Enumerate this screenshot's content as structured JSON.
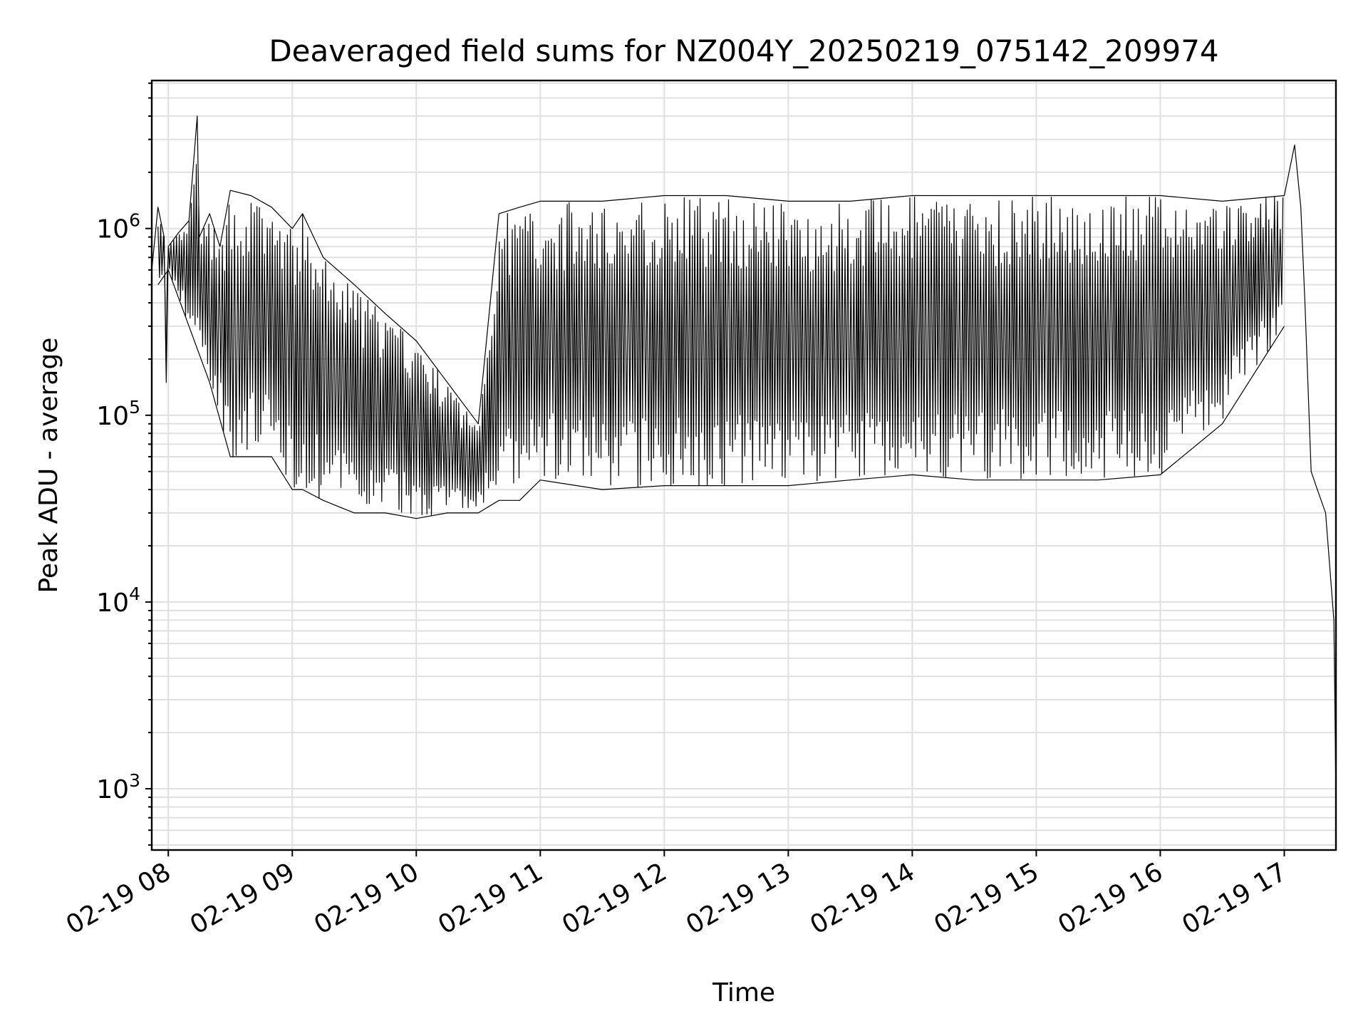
{
  "chart_data": {
    "type": "line",
    "title": "Deaveraged field sums for NZ004Y_20250219_075142_209974",
    "xlabel": "Time",
    "ylabel": "Peak ADU - average",
    "y_scale": "log",
    "ylim": [
      470,
      6200000
    ],
    "xlim": [
      "2025-02-19 07:52",
      "2025-02-19 17:25"
    ],
    "grid": true,
    "x_ticks": [
      "02-19 08",
      "02-19 09",
      "02-19 10",
      "02-19 11",
      "02-19 12",
      "02-19 13",
      "02-19 14",
      "02-19 15",
      "02-19 16",
      "02-19 17"
    ],
    "y_ticks": [
      {
        "value": 1000,
        "base": "10",
        "exp": "3"
      },
      {
        "value": 10000,
        "base": "10",
        "exp": "4"
      },
      {
        "value": 100000,
        "base": "10",
        "exp": "5"
      },
      {
        "value": 1000000,
        "base": "10",
        "exp": "6"
      }
    ],
    "line_color": "#000000",
    "series": [
      {
        "x": [
          "2025-02-19 07:52",
          "2025-02-19 07:55",
          "2025-02-19 07:58",
          "2025-02-19 07:59",
          "2025-02-19 08:00",
          "2025-02-19 08:05",
          "2025-02-19 08:10",
          "2025-02-19 08:14",
          "2025-02-19 08:15",
          "2025-02-19 08:20",
          "2025-02-19 08:25",
          "2025-02-19 08:30",
          "2025-02-19 08:40",
          "2025-02-19 08:50",
          "2025-02-19 09:00",
          "2025-02-19 09:05",
          "2025-02-19 09:15",
          "2025-02-19 09:30",
          "2025-02-19 09:45",
          "2025-02-19 10:00",
          "2025-02-19 10:15",
          "2025-02-19 10:30",
          "2025-02-19 10:40",
          "2025-02-19 10:50",
          "2025-02-19 11:00",
          "2025-02-19 11:30",
          "2025-02-19 12:00",
          "2025-02-19 12:30",
          "2025-02-19 13:00",
          "2025-02-19 13:30",
          "2025-02-19 14:00",
          "2025-02-19 14:30",
          "2025-02-19 15:00",
          "2025-02-19 15:30",
          "2025-02-19 16:00",
          "2025-02-19 16:30",
          "2025-02-19 17:00",
          "2025-02-19 17:05",
          "2025-02-19 17:08",
          "2025-02-19 17:10",
          "2025-02-19 17:13",
          "2025-02-19 17:16",
          "2025-02-19 17:20",
          "2025-02-19 17:24",
          "2025-02-19 17:25"
        ],
        "y": [
          600000,
          1300000,
          900000,
          150000,
          800000,
          950000,
          1100000,
          4000000,
          900000,
          1200000,
          800000,
          1600000,
          1500000,
          1300000,
          1000000,
          1200000,
          700000,
          500000,
          350000,
          250000,
          150000,
          90000,
          1200000,
          1300000,
          1400000,
          1400000,
          1500000,
          1500000,
          1400000,
          1400000,
          1500000,
          1500000,
          1500000,
          1500000,
          1500000,
          1400000,
          1500000,
          2800000,
          1300000,
          400000,
          50000,
          40000,
          30000,
          8000,
          900
        ]
      },
      {
        "x": [
          "2025-02-19 07:55",
          "2025-02-19 08:00",
          "2025-02-19 08:10",
          "2025-02-19 08:20",
          "2025-02-19 08:30",
          "2025-02-19 08:40",
          "2025-02-19 08:50",
          "2025-02-19 09:00",
          "2025-02-19 09:05",
          "2025-02-19 09:15",
          "2025-02-19 09:30",
          "2025-02-19 09:45",
          "2025-02-19 10:00",
          "2025-02-19 10:15",
          "2025-02-19 10:30",
          "2025-02-19 10:40",
          "2025-02-19 10:50",
          "2025-02-19 11:00",
          "2025-02-19 11:30",
          "2025-02-19 12:00",
          "2025-02-19 12:30",
          "2025-02-19 13:00",
          "2025-02-19 13:30",
          "2025-02-19 14:00",
          "2025-02-19 14:30",
          "2025-02-19 15:00",
          "2025-02-19 15:30",
          "2025-02-19 16:00",
          "2025-02-19 16:30",
          "2025-02-19 17:00"
        ],
        "y": [
          500000,
          600000,
          300000,
          150000,
          60000,
          60000,
          60000,
          40000,
          40000,
          35000,
          30000,
          30000,
          28000,
          30000,
          30000,
          35000,
          35000,
          45000,
          40000,
          42000,
          42000,
          42000,
          45000,
          48000,
          45000,
          45000,
          45000,
          48000,
          90000,
          300000
        ]
      }
    ]
  }
}
